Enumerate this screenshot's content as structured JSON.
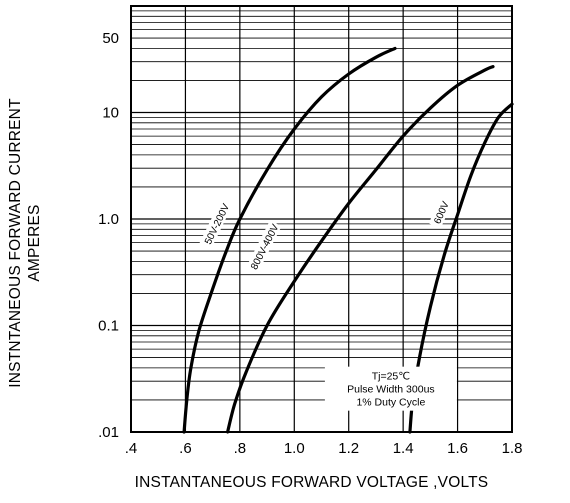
{
  "chart_data": {
    "type": "line",
    "title": "",
    "xlabel": "INSTANTANEOUS FORWARD VOLTAGE ,VOLTS",
    "ylabel": [
      "INSTNTANEOUS FORWARD CURRENT",
      "AMPERES"
    ],
    "xlim": [
      0.4,
      1.8
    ],
    "ylim": [
      0.01,
      100
    ],
    "yscale": "log",
    "grid": true,
    "x_ticks": [
      0.4,
      0.6,
      0.8,
      1.0,
      1.2,
      1.4,
      1.6,
      1.8
    ],
    "x_tick_labels": [
      ".4",
      ".6",
      ".8",
      "1.0",
      "1.2",
      "1.4",
      "1.6",
      "1.8"
    ],
    "y_ticks": [
      0.01,
      0.1,
      1.0,
      10,
      50
    ],
    "y_tick_labels": [
      ".01",
      "0.1",
      "1.0",
      "10",
      "50"
    ],
    "series": [
      {
        "name": "50V-200V",
        "x": [
          0.595,
          0.605,
          0.62,
          0.65,
          0.7,
          0.75,
          0.8,
          0.9,
          1.0,
          1.1,
          1.2,
          1.3,
          1.37
        ],
        "y": [
          0.01,
          0.02,
          0.04,
          0.09,
          0.22,
          0.5,
          1.0,
          2.9,
          7.0,
          14,
          23,
          33,
          40
        ]
      },
      {
        "name": "800V-400V",
        "x": [
          0.755,
          0.78,
          0.82,
          0.9,
          1.0,
          1.1,
          1.2,
          1.3,
          1.4,
          1.5,
          1.6,
          1.7,
          1.73
        ],
        "y": [
          0.01,
          0.018,
          0.035,
          0.1,
          0.26,
          0.62,
          1.4,
          2.9,
          6.0,
          11,
          18,
          25,
          27
        ]
      },
      {
        "name": "600V",
        "x": [
          1.425,
          1.435,
          1.46,
          1.5,
          1.55,
          1.6,
          1.65,
          1.7,
          1.75,
          1.8
        ],
        "y": [
          0.01,
          0.02,
          0.05,
          0.15,
          0.45,
          1.1,
          2.6,
          5.2,
          9.0,
          12
        ]
      }
    ],
    "annotations": [
      "Tj=25℃",
      "Pulse Width 300us",
      "1% Duty Cycle"
    ]
  }
}
